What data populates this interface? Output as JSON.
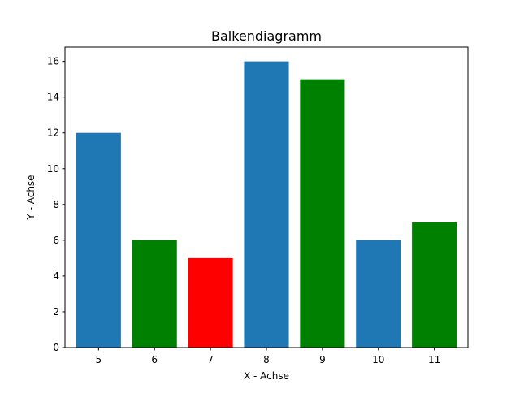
{
  "chart_data": {
    "type": "bar",
    "title": "Balkendiagramm",
    "xlabel": "X - Achse",
    "ylabel": "Y - Achse",
    "categories": [
      "5",
      "6",
      "7",
      "8",
      "9",
      "10",
      "11"
    ],
    "x": [
      5,
      6,
      7,
      8,
      9,
      10,
      11
    ],
    "values": [
      12,
      6,
      5,
      16,
      15,
      6,
      7
    ],
    "bar_colors": [
      "#1f77b4",
      "#008000",
      "#ff0000",
      "#1f77b4",
      "#008000",
      "#1f77b4",
      "#008000"
    ],
    "ylim": [
      0,
      16.8
    ],
    "yticks": [
      0,
      2,
      4,
      6,
      8,
      10,
      12,
      14,
      16
    ],
    "grid": false,
    "legend": null
  }
}
